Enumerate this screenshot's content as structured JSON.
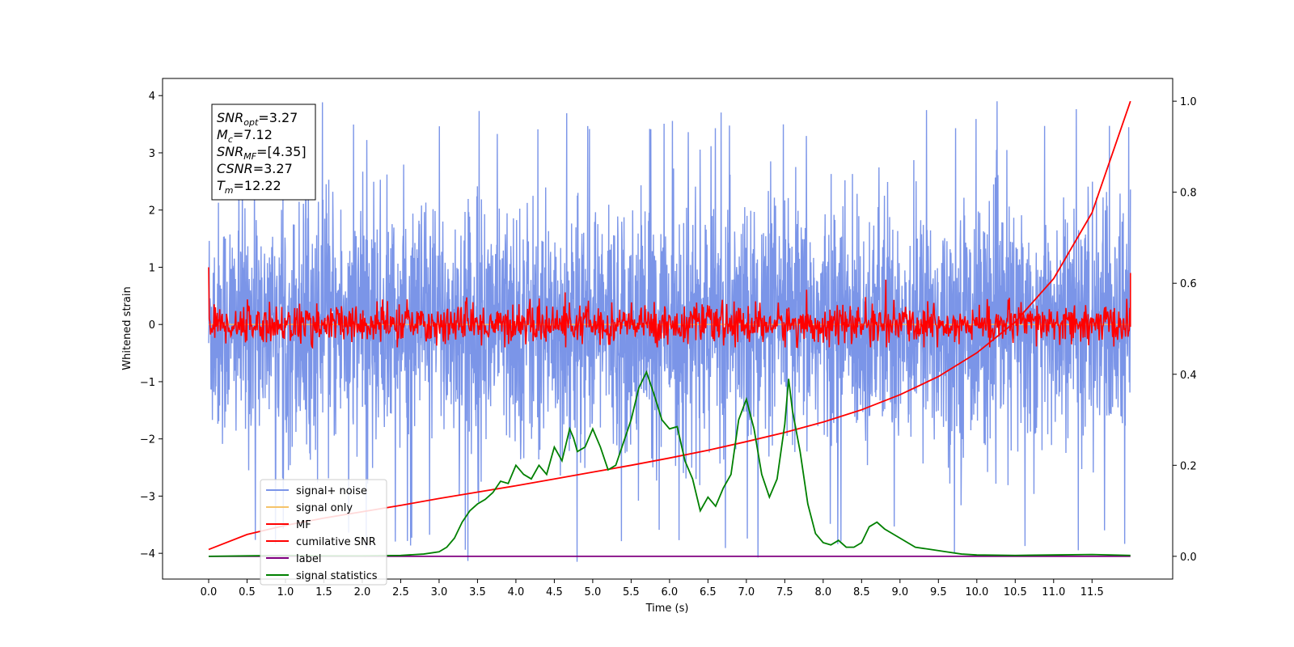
{
  "chart_data": {
    "type": "line",
    "xlabel": "Time (s)",
    "ylabel": "Whitened strain",
    "xlim": [
      -0.6,
      12.55
    ],
    "ylim_left": [
      -4.45,
      4.3
    ],
    "ylim_right": [
      -0.05,
      1.05
    ],
    "x_ticks": [
      "0.0",
      "0.5",
      "1.0",
      "1.5",
      "2.0",
      "2.5",
      "3.0",
      "3.5",
      "4.0",
      "4.5",
      "5.0",
      "5.5",
      "6.0",
      "6.5",
      "7.0",
      "7.5",
      "8.0",
      "8.5",
      "9.0",
      "9.5",
      "10.0",
      "10.5",
      "11.0",
      "11.5"
    ],
    "y_ticks_left": [
      "4",
      "3",
      "2",
      "1",
      "0",
      "−1",
      "−2",
      "−3",
      "−4"
    ],
    "y_ticks_right": [
      "1.0",
      "0.8",
      "0.6",
      "0.4",
      "0.2",
      "0.0"
    ],
    "annotations": [
      {
        "var": "SNR",
        "sub": "opt",
        "value": "=3.27"
      },
      {
        "var": "M",
        "sub": "c",
        "value": "=7.12"
      },
      {
        "var": "SNR",
        "sub": "MF",
        "value": "=[4.35]"
      },
      {
        "var": "CSNR",
        "sub": "",
        "value": "=3.27"
      },
      {
        "var": "T",
        "sub": "m",
        "value": "=12.22"
      }
    ],
    "legend_position": "lower-left",
    "colors": {
      "signal_noise": "#7b95e8",
      "signal_only": "#f5c36a",
      "mf": "#ff0000",
      "cumulative_snr": "#ff0000",
      "label": "#800080",
      "signal_statistics": "#008000"
    },
    "series": [
      {
        "name": "signal+ noise",
        "axis": "left",
        "description_values": {
          "x_range": [
            0.0,
            12.0
          ],
          "amplitude_range": [
            -4.15,
            3.9
          ]
        }
      },
      {
        "name": "signal only",
        "axis": "left",
        "values_const": 0.0
      },
      {
        "name": "MF",
        "axis": "left",
        "description_values": {
          "x_range": [
            0.0,
            12.0
          ],
          "amplitude_range": [
            -0.4,
            0.9
          ],
          "start": 1.0
        }
      },
      {
        "name": "cumilative SNR",
        "axis": "right",
        "x": [
          0.0,
          0.5,
          1.0,
          1.5,
          2.0,
          2.5,
          3.0,
          3.5,
          4.0,
          4.5,
          5.0,
          5.5,
          6.0,
          6.5,
          7.0,
          7.5,
          8.0,
          8.5,
          9.0,
          9.5,
          10.0,
          10.5,
          11.0,
          11.5,
          12.0
        ],
        "y": [
          0.015,
          0.048,
          0.068,
          0.084,
          0.098,
          0.112,
          0.127,
          0.141,
          0.155,
          0.17,
          0.185,
          0.2,
          0.216,
          0.233,
          0.252,
          0.272,
          0.295,
          0.322,
          0.355,
          0.395,
          0.447,
          0.515,
          0.61,
          0.755,
          1.0
        ]
      },
      {
        "name": "label",
        "axis": "right",
        "x": [
          0.0,
          12.0
        ],
        "y": [
          0.0,
          0.0
        ]
      },
      {
        "name": "signal statistics",
        "axis": "right",
        "x": [
          0.0,
          0.5,
          1.0,
          1.5,
          2.0,
          2.5,
          2.8,
          3.0,
          3.1,
          3.2,
          3.3,
          3.4,
          3.5,
          3.6,
          3.7,
          3.8,
          3.9,
          4.0,
          4.1,
          4.2,
          4.3,
          4.4,
          4.5,
          4.6,
          4.7,
          4.75,
          4.8,
          4.9,
          5.0,
          5.1,
          5.2,
          5.3,
          5.4,
          5.5,
          5.6,
          5.7,
          5.8,
          5.9,
          6.0,
          6.1,
          6.2,
          6.3,
          6.4,
          6.5,
          6.6,
          6.7,
          6.8,
          6.9,
          7.0,
          7.1,
          7.2,
          7.3,
          7.4,
          7.5,
          7.55,
          7.6,
          7.7,
          7.8,
          7.9,
          8.0,
          8.1,
          8.2,
          8.3,
          8.4,
          8.5,
          8.6,
          8.7,
          8.8,
          8.9,
          9.0,
          9.1,
          9.2,
          9.4,
          9.6,
          9.8,
          10.0,
          10.5,
          11.0,
          11.5,
          12.0
        ],
        "y": [
          0.0,
          0.001,
          0.002,
          0.001,
          0.001,
          0.002,
          0.005,
          0.01,
          0.02,
          0.04,
          0.075,
          0.1,
          0.115,
          0.125,
          0.14,
          0.165,
          0.16,
          0.2,
          0.18,
          0.17,
          0.2,
          0.18,
          0.24,
          0.21,
          0.28,
          0.26,
          0.23,
          0.24,
          0.28,
          0.24,
          0.19,
          0.2,
          0.25,
          0.3,
          0.37,
          0.405,
          0.355,
          0.3,
          0.28,
          0.285,
          0.21,
          0.17,
          0.1,
          0.13,
          0.11,
          0.15,
          0.18,
          0.3,
          0.345,
          0.28,
          0.18,
          0.13,
          0.17,
          0.29,
          0.39,
          0.32,
          0.23,
          0.115,
          0.05,
          0.03,
          0.025,
          0.035,
          0.02,
          0.02,
          0.03,
          0.065,
          0.075,
          0.06,
          0.05,
          0.04,
          0.03,
          0.02,
          0.015,
          0.01,
          0.005,
          0.003,
          0.002,
          0.003,
          0.004,
          0.002
        ]
      }
    ]
  }
}
